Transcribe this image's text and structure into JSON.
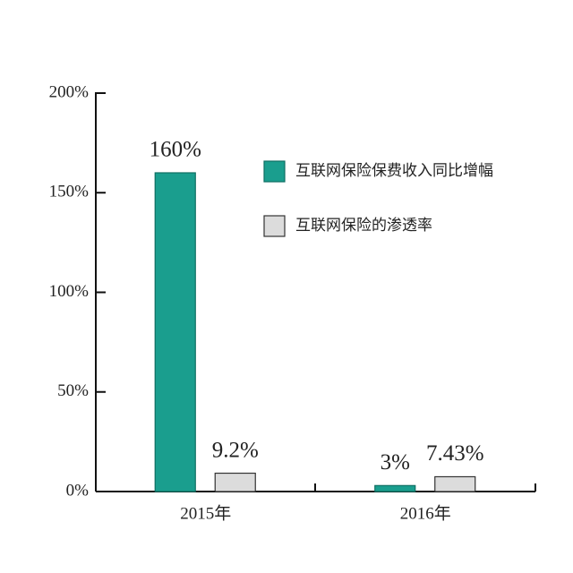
{
  "chart_data": {
    "type": "bar",
    "categories": [
      "2015年",
      "2016年"
    ],
    "series": [
      {
        "name": "互联网保险保费收入同比增幅",
        "color": "#1a9e8e",
        "values": [
          160,
          3
        ],
        "value_labels": [
          "160%",
          "3%"
        ]
      },
      {
        "name": "互联网保险的渗透率",
        "color": "#dcdcdc",
        "values": [
          9.2,
          7.43
        ],
        "value_labels": [
          "9.2%",
          "7.43%"
        ]
      }
    ],
    "ylim": [
      0,
      200
    ],
    "yticks": [
      {
        "value": 0,
        "label": "0%"
      },
      {
        "value": 50,
        "label": "50%"
      },
      {
        "value": 100,
        "label": "100%"
      },
      {
        "value": 150,
        "label": "150%"
      },
      {
        "value": 200,
        "label": "200%"
      }
    ],
    "grid": false
  }
}
